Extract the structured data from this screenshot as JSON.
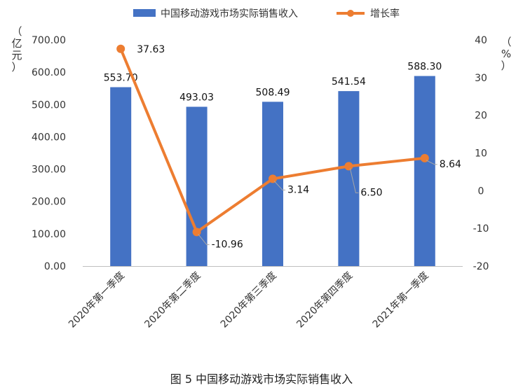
{
  "chart_data": {
    "type": "bar",
    "categories": [
      "2020年第一季度",
      "2020年第二季度",
      "2020年第三季度",
      "2020年第四季度",
      "2021年第一季度"
    ],
    "series": [
      {
        "name": "中国移动游戏市场实际销售收入",
        "type": "bar",
        "axis": "left",
        "values": [
          553.7,
          493.03,
          508.49,
          541.54,
          588.3
        ],
        "labels": [
          "553.70",
          "493.03",
          "508.49",
          "541.54",
          "588.30"
        ],
        "color": "#4472C4"
      },
      {
        "name": "增长率",
        "type": "line",
        "axis": "right",
        "values": [
          37.63,
          -10.96,
          3.14,
          6.5,
          8.64
        ],
        "labels": [
          "37.63",
          "-10.96",
          "3.14",
          "6.50",
          "8.64"
        ],
        "color": "#ED7D31"
      }
    ],
    "left_axis": {
      "unit_label": "（亿元）",
      "ylim": [
        0,
        700
      ],
      "ticks": [
        "0.00",
        "100.00",
        "200.00",
        "300.00",
        "400.00",
        "500.00",
        "600.00",
        "700.00"
      ]
    },
    "right_axis": {
      "unit_label": "（%）",
      "ylim": [
        -20,
        40
      ],
      "ticks": [
        "-20",
        "-10",
        "0",
        "10",
        "20",
        "30",
        "40"
      ]
    },
    "legend_position": "top",
    "grid": false
  },
  "caption": {
    "figure_no": "图 5",
    "title": "中国移动游戏市场实际销售收入"
  }
}
